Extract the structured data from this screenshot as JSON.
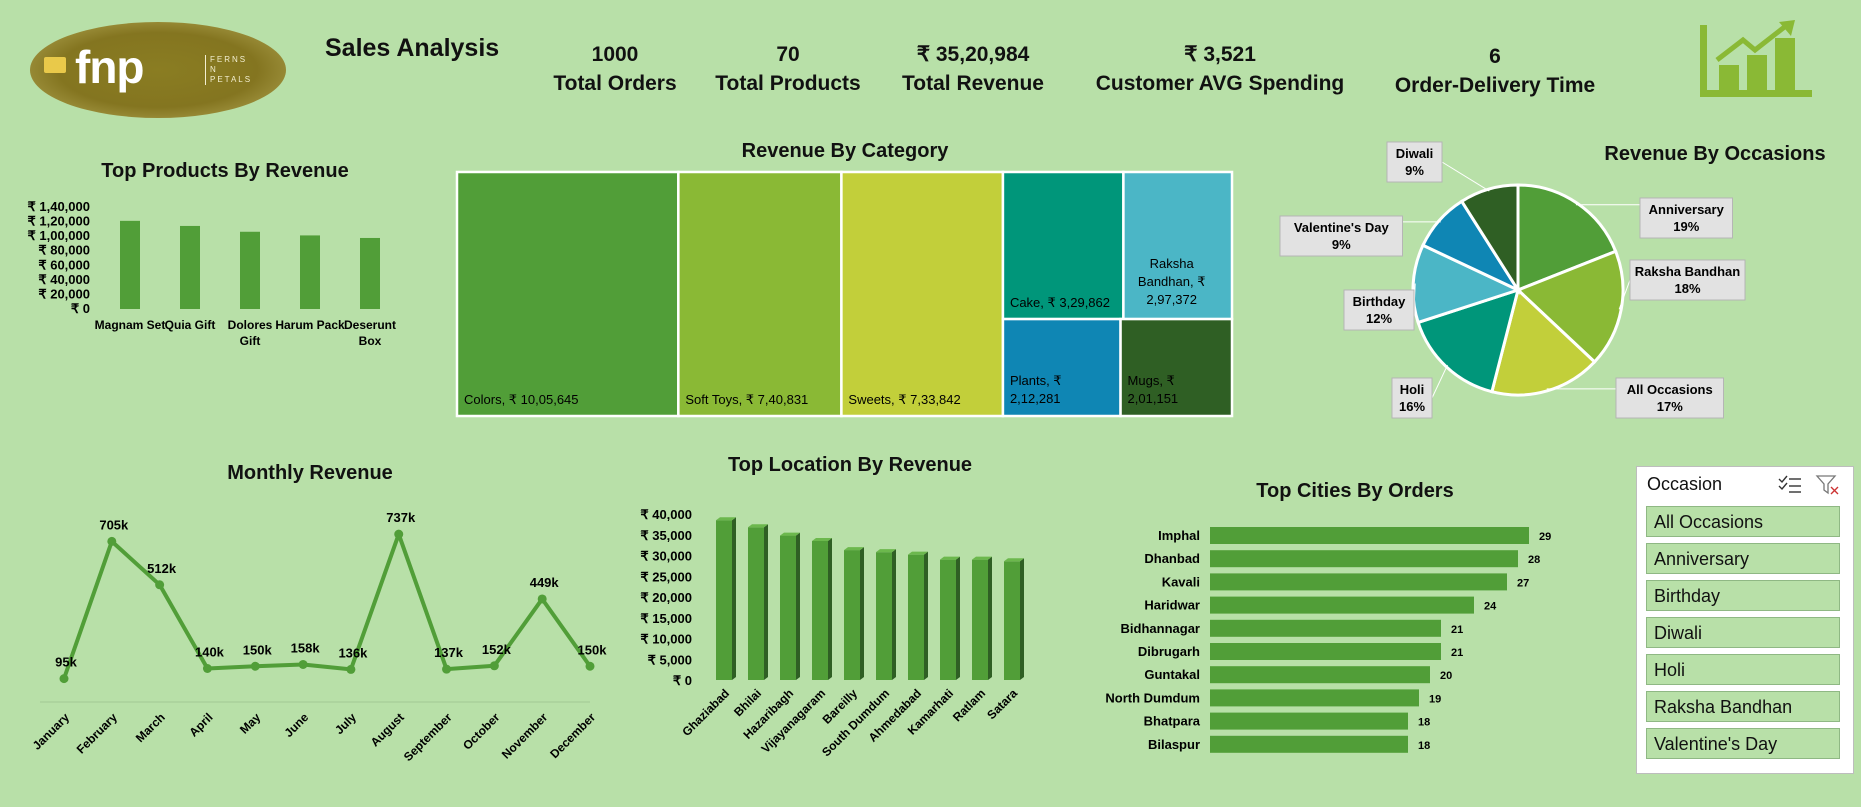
{
  "header": {
    "logo_text": "fnp",
    "logo_sub": [
      "FERNS",
      "N",
      "PETALS"
    ],
    "title": "Sales Analysis"
  },
  "kpis": [
    {
      "value": "1000",
      "label": "Total Orders"
    },
    {
      "value": "70",
      "label": "Total Products"
    },
    {
      "value": "₹ 35,20,984",
      "label": "Total Revenue"
    },
    {
      "value": "₹ 3,521",
      "label": "Customer AVG Spending"
    },
    {
      "value": "6",
      "label": "Order-Delivery Time"
    }
  ],
  "icon": "bar-chart-growth-icon",
  "colors": {
    "green1": "#519e38",
    "green2": "#8ab935",
    "lime": "#c2cf3a",
    "teal": "#00967a",
    "cyan": "#4bb6c6",
    "blue": "#0f86b4",
    "dark": "#2f5f24",
    "bg": "#b8e0a8"
  },
  "chart_data": [
    {
      "id": "top-products",
      "type": "bar",
      "title": "Top Products By Revenue",
      "categories": [
        "Magnam Set",
        "Quia Gift",
        "Dolores Gift",
        "Harum Pack",
        "Deserunt Box"
      ],
      "values": [
        121000,
        114000,
        106000,
        101000,
        97500
      ],
      "ylim": [
        0,
        140000
      ],
      "yticks": [
        "₹ 0",
        "₹ 20,000",
        "₹ 40,000",
        "₹ 60,000",
        "₹ 80,000",
        "₹ 1,00,000",
        "₹ 1,20,000",
        "₹ 1,40,000"
      ]
    },
    {
      "id": "revenue-by-category",
      "type": "treemap",
      "title": "Revenue By Category",
      "items": [
        {
          "label": "Colors, ₹ 10,05,645",
          "value": 1005645
        },
        {
          "label": "Soft Toys, ₹ 7,40,831",
          "value": 740831
        },
        {
          "label": "Sweets, ₹ 7,33,842",
          "value": 733842
        },
        {
          "label": "Cake, ₹ 3,29,862",
          "value": 329862
        },
        {
          "label": "Raksha Bandhan, ₹ 2,97,372",
          "value": 297372
        },
        {
          "label": "Plants, ₹ 2,12,281",
          "value": 212281
        },
        {
          "label": "Mugs, ₹ 2,01,151",
          "value": 201151
        }
      ]
    },
    {
      "id": "revenue-by-occasions",
      "type": "pie",
      "title": "Revenue By Occasions",
      "slices": [
        {
          "name": "Anniversary",
          "pct": 19,
          "label": "19%"
        },
        {
          "name": "Raksha Bandhan",
          "pct": 18,
          "label": "18%"
        },
        {
          "name": "All Occasions",
          "pct": 17,
          "label": "17%"
        },
        {
          "name": "Holi",
          "pct": 16,
          "label": "16%"
        },
        {
          "name": "Birthday",
          "pct": 12,
          "label": "12%"
        },
        {
          "name": "Valentine's Day",
          "pct": 9,
          "label": "9%"
        },
        {
          "name": "Diwali",
          "pct": 9,
          "label": "9%"
        }
      ]
    },
    {
      "id": "monthly-revenue",
      "type": "line",
      "title": "Monthly Revenue",
      "categories": [
        "January",
        "February",
        "March",
        "April",
        "May",
        "June",
        "July",
        "August",
        "September",
        "October",
        "November",
        "December"
      ],
      "values": [
        95,
        705,
        512,
        140,
        150,
        158,
        136,
        737,
        137,
        152,
        449,
        150
      ],
      "labels": [
        "95k",
        "705k",
        "512k",
        "140k",
        "150k",
        "158k",
        "136k",
        "737k",
        "137k",
        "152k",
        "449k",
        "150k"
      ]
    },
    {
      "id": "top-location",
      "type": "bar",
      "title": "Top Location By Revenue",
      "categories": [
        "Ghaziabad",
        "Bhilai",
        "Hazaribagh",
        "Vijayanagaram",
        "Bareilly",
        "South Dumdum",
        "Ahmedabad",
        "Kamarhati",
        "Ratlam",
        "Satara"
      ],
      "values": [
        38500,
        36800,
        34800,
        33500,
        31300,
        30800,
        30200,
        29000,
        29000,
        28600
      ],
      "ylim": [
        0,
        40000
      ],
      "yticks": [
        "₹ 0",
        "₹ 5,000",
        "₹ 10,000",
        "₹ 15,000",
        "₹ 20,000",
        "₹ 25,000",
        "₹ 30,000",
        "₹ 35,000",
        "₹ 40,000"
      ]
    },
    {
      "id": "top-cities",
      "type": "bar",
      "title": "Top Cities By Orders",
      "categories": [
        "Imphal",
        "Dhanbad",
        "Kavali",
        "Haridwar",
        "Bidhannagar",
        "Dibrugarh",
        "Guntakal",
        "North Dumdum",
        "Bhatpara",
        "Bilaspur"
      ],
      "values": [
        29,
        28,
        27,
        24,
        21,
        21,
        20,
        19,
        18,
        18
      ],
      "labels": [
        "29",
        "28",
        "27",
        "24",
        "21",
        "21",
        "20",
        "19",
        "18",
        "18"
      ]
    }
  ],
  "slicer": {
    "title": "Occasion",
    "items": [
      "All Occasions",
      "Anniversary",
      "Birthday",
      "Diwali",
      "Holi",
      "Raksha Bandhan",
      "Valentine's Day"
    ]
  }
}
